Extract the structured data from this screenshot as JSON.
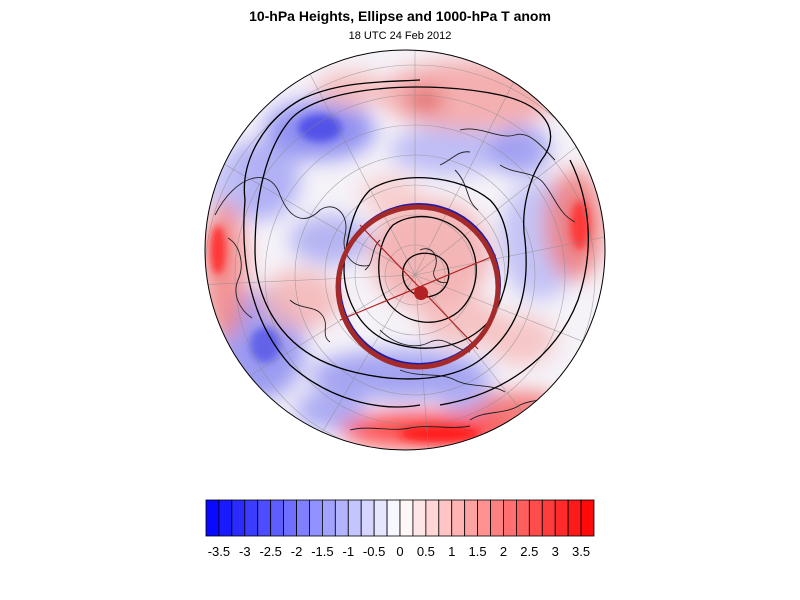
{
  "figure": {
    "title": "10-hPa Heights, Ellipse and 1000-hPa T anom",
    "subtitle": "18 UTC 24 Feb 2012"
  },
  "colorbar": {
    "min": -3.75,
    "max": 3.75,
    "step": 0.25,
    "labels": [
      "-3.5",
      "-3",
      "-2.5",
      "-2",
      "-1.5",
      "-1",
      "-0.5",
      "0",
      "0.5",
      "1",
      "1.5",
      "2",
      "2.5",
      "3",
      "3.5"
    ],
    "label_values": [
      -3.5,
      -3,
      -2.5,
      -2,
      -1.5,
      -1,
      -0.5,
      0,
      0.5,
      1,
      1.5,
      2,
      2.5,
      3,
      3.5
    ],
    "low_color": "#0000ff",
    "mid_color": "#ffffff",
    "high_color": "#ff0000"
  },
  "map": {
    "projection": "orthographic, north-polar",
    "ellipse_color": "#a52a2a",
    "ellipse_outline_color": "#1a1aa8",
    "center_marker_color": "#b22222"
  }
}
